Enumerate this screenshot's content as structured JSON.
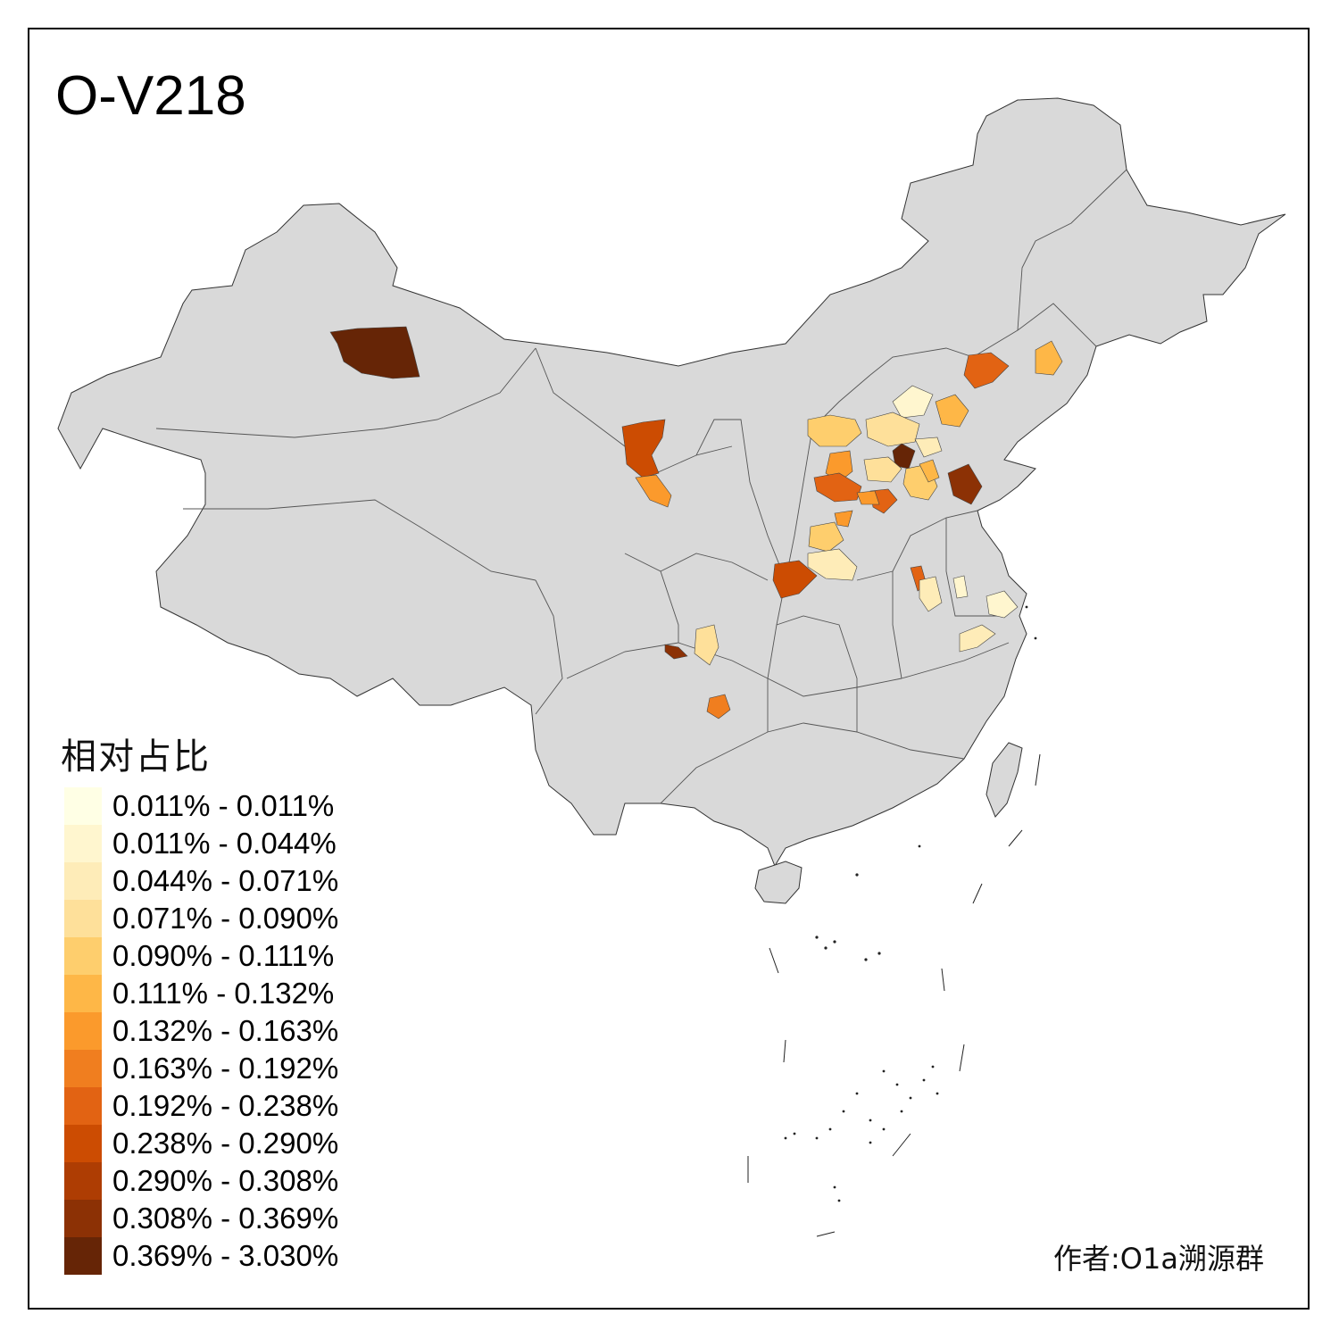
{
  "title": "O-V218",
  "legend": {
    "title": "相对占比",
    "items": [
      {
        "label": "0.011% - 0.011%",
        "color": "#FFFFE5"
      },
      {
        "label": "0.011% - 0.044%",
        "color": "#FFF6CF"
      },
      {
        "label": "0.044% - 0.071%",
        "color": "#FEECB8"
      },
      {
        "label": "0.071% - 0.090%",
        "color": "#FEE09A"
      },
      {
        "label": "0.090% - 0.111%",
        "color": "#FECE6D"
      },
      {
        "label": "0.111% - 0.132%",
        "color": "#FEB747"
      },
      {
        "label": "0.132% - 0.163%",
        "color": "#FB9A2C"
      },
      {
        "label": "0.163% - 0.192%",
        "color": "#F07E1F"
      },
      {
        "label": "0.192% - 0.238%",
        "color": "#E26313"
      },
      {
        "label": "0.238% - 0.290%",
        "color": "#CC4C02"
      },
      {
        "label": "0.290% - 0.308%",
        "color": "#AE3D03"
      },
      {
        "label": "0.308% - 0.369%",
        "color": "#8C3105"
      },
      {
        "label": "0.369% - 3.030%",
        "color": "#662506"
      }
    ]
  },
  "credit": "作者:O1a溯源群",
  "colors": {
    "land": "#D9D9D9",
    "border": "#333333",
    "background": "#FFFFFF"
  }
}
